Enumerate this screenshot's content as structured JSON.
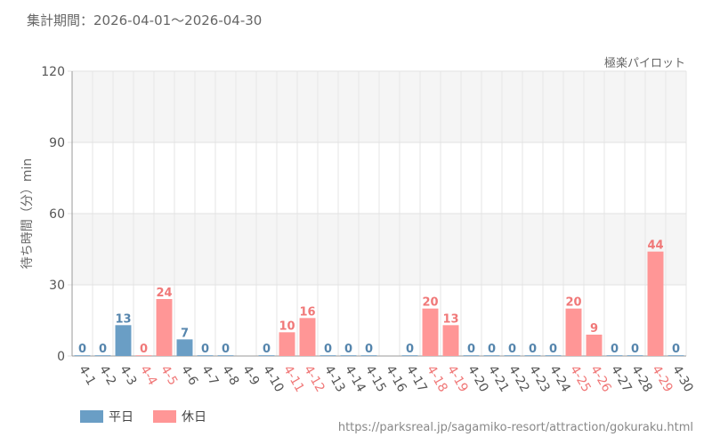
{
  "header": {
    "period": "集計期間：2026-04-01～2026-04-30",
    "attraction": "極楽パイロット"
  },
  "footer": {
    "url": "https://parksreal.jp/sagamiko-resort/attraction/gokuraku.html"
  },
  "legend": {
    "weekday_label": "平日",
    "holiday_label": "休日"
  },
  "colors": {
    "weekday": "#6a9ec5",
    "holiday": "#ff9696",
    "weekday_text": "#5585ad",
    "holiday_text": "#f07878"
  },
  "chart_data": {
    "type": "bar",
    "ylabel": "待ち時間（分）min",
    "ylim": [
      0,
      120
    ],
    "yticks": [
      0,
      30,
      60,
      90,
      120
    ],
    "grid": true,
    "legend": "bottom-left",
    "categories": [
      "4-1",
      "4-2",
      "4-3",
      "4-4",
      "4-5",
      "4-6",
      "4-7",
      "4-8",
      "4-9",
      "4-10",
      "4-11",
      "4-12",
      "4-13",
      "4-14",
      "4-15",
      "4-16",
      "4-17",
      "4-18",
      "4-19",
      "4-20",
      "4-21",
      "4-22",
      "4-23",
      "4-24",
      "4-25",
      "4-26",
      "4-27",
      "4-28",
      "4-29",
      "4-30"
    ],
    "values": [
      0,
      0,
      13,
      0,
      24,
      7,
      0,
      0,
      null,
      0,
      10,
      16,
      0,
      0,
      0,
      null,
      0,
      20,
      13,
      0,
      0,
      0,
      0,
      0,
      20,
      9,
      0,
      0,
      44,
      0
    ],
    "day_type": [
      "weekday",
      "weekday",
      "weekday",
      "holiday",
      "holiday",
      "weekday",
      "weekday",
      "weekday",
      "weekday",
      "weekday",
      "holiday",
      "holiday",
      "weekday",
      "weekday",
      "weekday",
      "weekday",
      "weekday",
      "holiday",
      "holiday",
      "weekday",
      "weekday",
      "weekday",
      "weekday",
      "weekday",
      "holiday",
      "holiday",
      "weekday",
      "weekday",
      "holiday",
      "weekday"
    ]
  }
}
